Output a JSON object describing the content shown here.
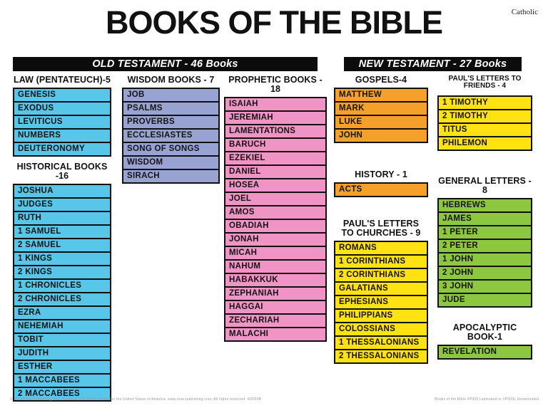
{
  "meta": {
    "corner_label": "Catholic",
    "title": "BOOKS OF THE BIBLE"
  },
  "banners": {
    "old_testament": "OLD TESTAMENT - 46 Books",
    "new_testament": "NEW TESTAMENT - 27 Books"
  },
  "colors": {
    "cyan": "#57C6E9",
    "periwinkle": "#99A3D2",
    "pink": "#F093C5",
    "orange": "#F5A02B",
    "yellow": "#FFE212",
    "green": "#8DC63F"
  },
  "sections": [
    {
      "id": "law",
      "title_lines": [
        "LAW (PENTATEUCH)-5"
      ],
      "color": "cyan",
      "books": [
        "GENESIS",
        "EXODUS",
        "LEVITICUS",
        "NUMBERS",
        "DEUTERONOMY"
      ]
    },
    {
      "id": "historical",
      "title_lines": [
        "HISTORICAL BOOKS -16"
      ],
      "color": "cyan",
      "books": [
        "JOSHUA",
        "JUDGES",
        "RUTH",
        "1 SAMUEL",
        "2 SAMUEL",
        "1 KINGS",
        "2 KINGS",
        "1 CHRONICLES",
        "2 CHRONICLES",
        "EZRA",
        "NEHEMIAH",
        "TOBIT",
        "JUDITH",
        "ESTHER",
        "1 MACCABEES",
        "2 MACCABEES"
      ]
    },
    {
      "id": "wisdom",
      "title_lines": [
        "WISDOM BOOKS - 7"
      ],
      "color": "periwinkle",
      "books": [
        "JOB",
        "PSALMS",
        "PROVERBS",
        "ECCLESIASTES",
        "SONG OF SONGS",
        "WISDOM",
        "SIRACH"
      ]
    },
    {
      "id": "prophetic",
      "title_lines": [
        "PROPHETIC BOOKS - 18"
      ],
      "color": "pink",
      "books": [
        "ISAIAH",
        "JEREMIAH",
        "LAMENTATIONS",
        "BARUCH",
        "EZEKIEL",
        "DANIEL",
        "HOSEA",
        "JOEL",
        "AMOS",
        "OBADIAH",
        "JONAH",
        "MICAH",
        "NAHUM",
        "HABAKKUK",
        "ZEPHANIAH",
        "HAGGAI",
        "ZECHARIAH",
        "MALACHI"
      ]
    },
    {
      "id": "gospels",
      "title_lines": [
        "GOSPELS-4"
      ],
      "color": "orange",
      "books": [
        "MATTHEW",
        "MARK",
        "LUKE",
        "JOHN"
      ]
    },
    {
      "id": "history",
      "title_lines": [
        "HISTORY - 1"
      ],
      "color": "orange",
      "books": [
        "ACTS"
      ]
    },
    {
      "id": "churches",
      "title_lines": [
        "PAUL'S LETTERS",
        "TO CHURCHES - 9"
      ],
      "color": "yellow",
      "books": [
        "ROMANS",
        "1 CORINTHIANS",
        "2 CORINTHIANS",
        "GALATIANS",
        "EPHESIANS",
        "PHILIPPIANS",
        "COLOSSIANS",
        "1 THESSALONIANS",
        "2 THESSALONIANS"
      ]
    },
    {
      "id": "friends",
      "title_lines": [
        "PAUL'S LETTERS TO FRIENDS - 4"
      ],
      "small_title": true,
      "color": "yellow",
      "books": [
        "1 TIMOTHY",
        "2 TIMOTHY",
        "TITUS",
        "PHILEMON"
      ]
    },
    {
      "id": "general",
      "title_lines": [
        "GENERAL LETTERS - 8"
      ],
      "color": "green",
      "books": [
        "HEBREWS",
        "JAMES",
        "1 PETER",
        "2 PETER",
        "1 JOHN",
        "2 JOHN",
        "3 JOHN",
        "JUDE"
      ]
    },
    {
      "id": "apocalyptic",
      "title_lines": [
        "APOCALYPTIC BOOK-1"
      ],
      "color": "green",
      "books": [
        "REVELATION"
      ]
    }
  ],
  "footer": {
    "left": "© 2003 Rose Publishing, Inc., Torrance, CA 90503. Printed in the United States of America. www.rose-publishing.com. All rights reserved. 4/2003B",
    "right": "Books of the Bible    #P003 Laminated or #P003L Unlaminated"
  }
}
